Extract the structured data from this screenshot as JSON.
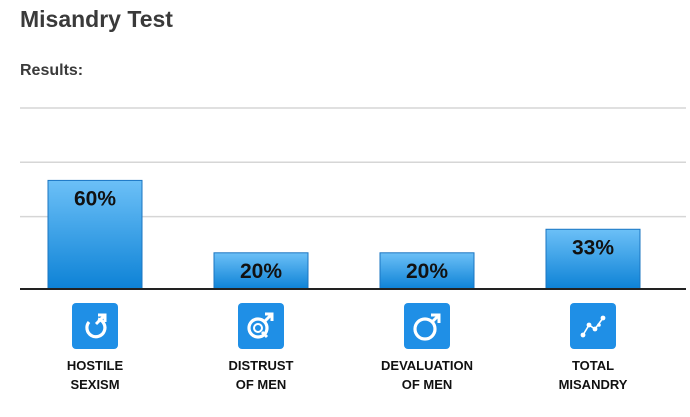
{
  "page": {
    "title": "Misandry Test",
    "results_label": "Results:"
  },
  "chart_data": {
    "type": "bar",
    "categories": [
      [
        "HOSTILE",
        "SEXISM"
      ],
      [
        "DISTRUST",
        "OF MEN"
      ],
      [
        "DEVALUATION",
        "OF MEN"
      ],
      [
        "TOTAL",
        "MISANDRY"
      ]
    ],
    "values": [
      60,
      20,
      20,
      33
    ],
    "data_labels": [
      "60%",
      "20%",
      "20%",
      "33%"
    ],
    "icons": [
      "mars-broken-icon",
      "mars-magnifier-icon",
      "mars-thumbs-down-icon",
      "scatter-plot-icon"
    ],
    "ylim": [
      0,
      100
    ],
    "grid": true,
    "colors": {
      "bar_top": "#6cc0f7",
      "bar_bottom": "#0d82d6",
      "bar_border": "#1a75c2",
      "icon_tile": "#1f8fe6",
      "grid": "#d6d6d6",
      "axis": "#222222"
    }
  }
}
